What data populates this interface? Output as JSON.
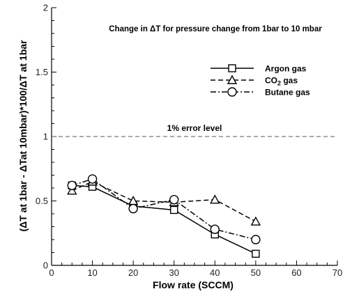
{
  "chart_data": {
    "type": "line",
    "title": "Change in ΔT for pressure change from 1bar to 10 mbar",
    "xlabel": "Flow rate (SCCM)",
    "ylabel": "(ΔT at 1bar - ΔTat 10mbar)*100/ΔT at 1bar",
    "xlim": [
      0,
      70
    ],
    "ylim": [
      0,
      2
    ],
    "xticks": [
      0,
      10,
      20,
      30,
      40,
      50,
      60,
      70
    ],
    "yticks": [
      0,
      0.5,
      1,
      1.5,
      2
    ],
    "xtick_labels": [
      "0",
      "10",
      "20",
      "30",
      "40",
      "50",
      "60",
      "70"
    ],
    "ytick_labels": [
      "0",
      "0.5",
      "1",
      "1.5",
      "2"
    ],
    "grid": false,
    "legend_position": "top-right",
    "x": [
      5,
      10,
      20,
      30,
      40,
      50
    ],
    "series": [
      {
        "name": "Argon gas",
        "marker": "square",
        "dash": "solid",
        "values": [
          0.62,
          0.61,
          0.46,
          0.43,
          0.24,
          0.09
        ]
      },
      {
        "name_parts": [
          "CO",
          "2",
          " gas"
        ],
        "marker": "triangle",
        "dash": "dashed",
        "values": [
          0.58,
          0.65,
          0.5,
          0.49,
          0.51,
          0.34
        ]
      },
      {
        "name": "Butane gas",
        "marker": "circle",
        "dash": "dashdot",
        "values": [
          0.62,
          0.67,
          0.44,
          0.51,
          0.28,
          0.2
        ]
      }
    ],
    "reference_line": {
      "y": 1,
      "label": "1% error level",
      "dash": "dashed"
    },
    "colors": {
      "line": "#000000",
      "reference": "#555555"
    }
  }
}
